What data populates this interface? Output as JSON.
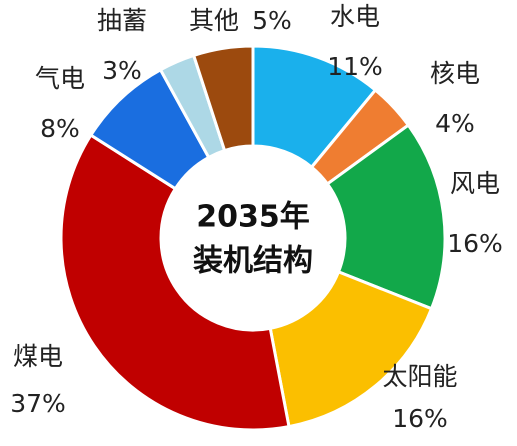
{
  "chart_data": {
    "type": "donut",
    "center_text": [
      "2035年",
      "装机结构"
    ],
    "categories": [
      "水电",
      "核电",
      "风电",
      "太阳能",
      "煤电",
      "气电",
      "抽蓄",
      "其他"
    ],
    "values": [
      11,
      4,
      16,
      16,
      37,
      8,
      3,
      5
    ],
    "value_labels": [
      "11%",
      "4%",
      "16%",
      "16%",
      "37%",
      "8%",
      "3%",
      "5%"
    ],
    "colors": [
      "#1ab0ec",
      "#ef7d31",
      "#12a84a",
      "#fbbf00",
      "#c00000",
      "#1a6ee0",
      "#add8e6",
      "#9c4a0e"
    ]
  }
}
